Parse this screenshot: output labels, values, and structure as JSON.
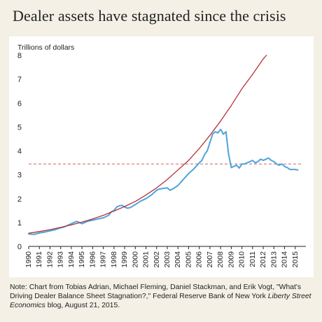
{
  "title": "Dealer assets have stagnated since the crisis",
  "note": {
    "prefix": "Note: Chart from Tobias Adrian, Michael Fleming, Daniel Stackman, and Erik Vogt, \"What's Driving Dealer Balance Sheet Stagnation?,\" Federal Reserve Bank of New York ",
    "publication": "Liberty Street Economics",
    "suffix": " blog, August 21, 2015."
  },
  "chart_data": {
    "type": "line",
    "ylabel": "Trillions of dollars",
    "ylim": [
      0,
      8
    ],
    "xlim": [
      1990,
      2016
    ],
    "y_ticks": [
      "0",
      "1",
      "2",
      "3",
      "4",
      "5",
      "6",
      "7",
      "8"
    ],
    "x_ticks": [
      {
        "label": "1990",
        "value": 1990
      },
      {
        "label": "1991",
        "value": 1991
      },
      {
        "label": "1992",
        "value": 1992
      },
      {
        "label": "1993",
        "value": 1993
      },
      {
        "label": "1994",
        "value": 1994
      },
      {
        "label": "1995",
        "value": 1995
      },
      {
        "label": "1996",
        "value": 1996
      },
      {
        "label": "1997",
        "value": 1997
      },
      {
        "label": "1998",
        "value": 1998
      },
      {
        "label": "1999",
        "value": 1999
      },
      {
        "label": "2000",
        "value": 2000
      },
      {
        "label": "2001",
        "value": 2001
      },
      {
        "label": "2002",
        "value": 2002
      },
      {
        "label": "2003",
        "value": 2003
      },
      {
        "label": "2004",
        "value": 2004
      },
      {
        "label": "2005",
        "value": 2005
      },
      {
        "label": "2006",
        "value": 2006
      },
      {
        "label": "2007",
        "value": 2007
      },
      {
        "label": "2008",
        "value": 2008
      },
      {
        "label": "2009",
        "value": 2009
      },
      {
        "label": "2010",
        "value": 2010
      },
      {
        "label": "2011",
        "value": 2011
      },
      {
        "label": "2012",
        "value": 2012
      },
      {
        "label": "2013",
        "value": 2013
      },
      {
        "label": "2014",
        "value": 2014
      },
      {
        "label": "2015",
        "value": 2015
      }
    ],
    "series": [
      {
        "color": "#4fa3dc",
        "x": [
          1990.0,
          1990.5,
          1991.0,
          1991.5,
          1992.0,
          1992.5,
          1993.0,
          1993.25,
          1993.5,
          1994.0,
          1994.25,
          1994.5,
          1995.0,
          1995.5,
          1996.0,
          1996.5,
          1997.0,
          1997.5,
          1997.75,
          1998.0,
          1998.25,
          1998.5,
          1998.75,
          1999.0,
          1999.25,
          1999.5,
          2000.0,
          2000.5,
          2001.0,
          2001.5,
          2002.0,
          2002.25,
          2002.5,
          2003.0,
          2003.25,
          2003.5,
          2004.0,
          2004.5,
          2005.0,
          2005.5,
          2006.0,
          2006.25,
          2006.5,
          2006.75,
          2007.0,
          2007.25,
          2007.5,
          2007.75,
          2008.0,
          2008.25,
          2008.5,
          2008.75,
          2009.0,
          2009.25,
          2009.5,
          2009.75,
          2010.0,
          2010.25,
          2010.5,
          2010.75,
          2011.0,
          2011.25,
          2011.5,
          2011.75,
          2012.0,
          2012.25,
          2012.5,
          2012.75,
          2013.0,
          2013.25,
          2013.5,
          2013.75,
          2014.0,
          2014.25,
          2014.5,
          2014.75,
          2015.0,
          2015.25
        ],
        "y": [
          0.52,
          0.5,
          0.56,
          0.6,
          0.65,
          0.7,
          0.78,
          0.8,
          0.85,
          0.95,
          1.0,
          1.05,
          0.95,
          1.05,
          1.1,
          1.15,
          1.2,
          1.3,
          1.45,
          1.5,
          1.65,
          1.7,
          1.72,
          1.65,
          1.6,
          1.62,
          1.75,
          1.9,
          2.0,
          2.15,
          2.35,
          2.4,
          2.42,
          2.45,
          2.35,
          2.4,
          2.55,
          2.8,
          3.05,
          3.25,
          3.5,
          3.6,
          3.85,
          4.0,
          4.35,
          4.7,
          4.8,
          4.75,
          4.9,
          4.7,
          4.8,
          3.85,
          3.3,
          3.35,
          3.4,
          3.28,
          3.45,
          3.45,
          3.5,
          3.55,
          3.6,
          3.5,
          3.55,
          3.65,
          3.6,
          3.65,
          3.7,
          3.6,
          3.55,
          3.45,
          3.4,
          3.45,
          3.35,
          3.3,
          3.22,
          3.22,
          3.22,
          3.2
        ]
      },
      {
        "color": "#b3333a",
        "x": [
          1990.0,
          1991.0,
          1992.0,
          1993.0,
          1994.0,
          1995.0,
          1996.0,
          1997.0,
          1998.0,
          1999.0,
          2000.0,
          2001.0,
          2002.0,
          2003.0,
          2004.0,
          2005.0,
          2006.0,
          2007.0,
          2008.0,
          2009.0,
          2010.0,
          2011.0,
          2012.0,
          2012.3
        ],
        "y": [
          0.55,
          0.62,
          0.7,
          0.8,
          0.9,
          1.02,
          1.15,
          1.3,
          1.48,
          1.67,
          1.88,
          2.15,
          2.45,
          2.8,
          3.2,
          3.6,
          4.1,
          4.65,
          5.25,
          5.9,
          6.6,
          7.2,
          7.85,
          8.0
        ]
      }
    ],
    "reference_line": {
      "y": 3.45,
      "color": "#d06060",
      "style": "dashed"
    }
  }
}
